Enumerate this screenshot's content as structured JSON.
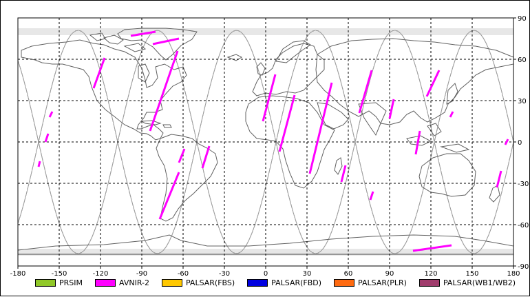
{
  "map": {
    "x_ticks": [
      "-180",
      "-150",
      "-120",
      "-90",
      "-60",
      "-30",
      "0",
      "30",
      "60",
      "90",
      "120",
      "150",
      "180"
    ],
    "y_ticks": [
      "90",
      "60",
      "30",
      "0",
      "-30",
      "-60",
      "-90"
    ],
    "x_range": [
      -180,
      180
    ],
    "y_range": [
      -90,
      90
    ],
    "grid": "dashed every 30 degrees",
    "orbit_track_color": "#a0a0a0",
    "coastline_color": "#606060"
  },
  "legend": [
    {
      "label": "PRSIM",
      "color": "#90c828"
    },
    {
      "label": "AVNIR-2",
      "color": "#ff00ff"
    },
    {
      "label": "PALSAR(FBS)",
      "color": "#ffc800"
    },
    {
      "label": "PALSAR(FBD)",
      "color": "#0000e0"
    },
    {
      "label": "PALSAR(PLR)",
      "color": "#ff6a10"
    },
    {
      "label": "PALSAR(WB1/WB2)",
      "color": "#a03c6c"
    }
  ],
  "observation_segments": [
    {
      "sensor": "AVNIR-2",
      "lon": [
        -98,
        -80
      ],
      "lat": [
        77,
        80
      ]
    },
    {
      "sensor": "AVNIR-2",
      "lon": [
        -82,
        -63
      ],
      "lat": [
        71,
        75
      ]
    },
    {
      "sensor": "AVNIR-2",
      "lon": [
        -125,
        -117
      ],
      "lat": [
        39,
        61
      ]
    },
    {
      "sensor": "AVNIR-2",
      "lon": [
        -84,
        -64
      ],
      "lat": [
        8,
        66
      ]
    },
    {
      "sensor": "AVNIR-2",
      "lon": [
        -77,
        -63
      ],
      "lat": [
        -56,
        -22
      ]
    },
    {
      "sensor": "AVNIR-2",
      "lon": [
        -63,
        -59
      ],
      "lat": [
        -15,
        -5
      ]
    },
    {
      "sensor": "AVNIR-2",
      "lon": [
        -46,
        -41
      ],
      "lat": [
        -19,
        -3
      ]
    },
    {
      "sensor": "AVNIR-2",
      "lon": [
        -157,
        -155
      ],
      "lat": [
        18,
        22
      ]
    },
    {
      "sensor": "AVNIR-2",
      "lon": [
        -160,
        -158
      ],
      "lat": [
        0,
        6
      ]
    },
    {
      "sensor": "AVNIR-2",
      "lon": [
        -165,
        -164
      ],
      "lat": [
        -18,
        -14
      ]
    },
    {
      "sensor": "AVNIR-2",
      "lon": [
        -2,
        7
      ],
      "lat": [
        15,
        49
      ]
    },
    {
      "sensor": "AVNIR-2",
      "lon": [
        10,
        21
      ],
      "lat": [
        -7,
        34
      ]
    },
    {
      "sensor": "AVNIR-2",
      "lon": [
        32,
        48
      ],
      "lat": [
        -23,
        43
      ]
    },
    {
      "sensor": "AVNIR-2",
      "lon": [
        55,
        58
      ],
      "lat": [
        -29,
        -17
      ]
    },
    {
      "sensor": "AVNIR-2",
      "lon": [
        68,
        77
      ],
      "lat": [
        21,
        52
      ]
    },
    {
      "sensor": "AVNIR-2",
      "lon": [
        76,
        78
      ],
      "lat": [
        -42,
        -36
      ]
    },
    {
      "sensor": "AVNIR-2",
      "lon": [
        90,
        93
      ],
      "lat": [
        17,
        31
      ]
    },
    {
      "sensor": "AVNIR-2",
      "lon": [
        109,
        112
      ],
      "lat": [
        -9,
        8
      ]
    },
    {
      "sensor": "AVNIR-2",
      "lon": [
        117,
        126
      ],
      "lat": [
        33,
        52
      ]
    },
    {
      "sensor": "AVNIR-2",
      "lon": [
        134,
        136
      ],
      "lat": [
        18,
        22
      ]
    },
    {
      "sensor": "AVNIR-2",
      "lon": [
        168,
        171
      ],
      "lat": [
        -33,
        -21
      ]
    },
    {
      "sensor": "AVNIR-2",
      "lon": [
        174,
        176
      ],
      "lat": [
        -2,
        2
      ]
    },
    {
      "sensor": "AVNIR-2",
      "lon": [
        107,
        135
      ],
      "lat": [
        -79,
        -75
      ]
    }
  ]
}
